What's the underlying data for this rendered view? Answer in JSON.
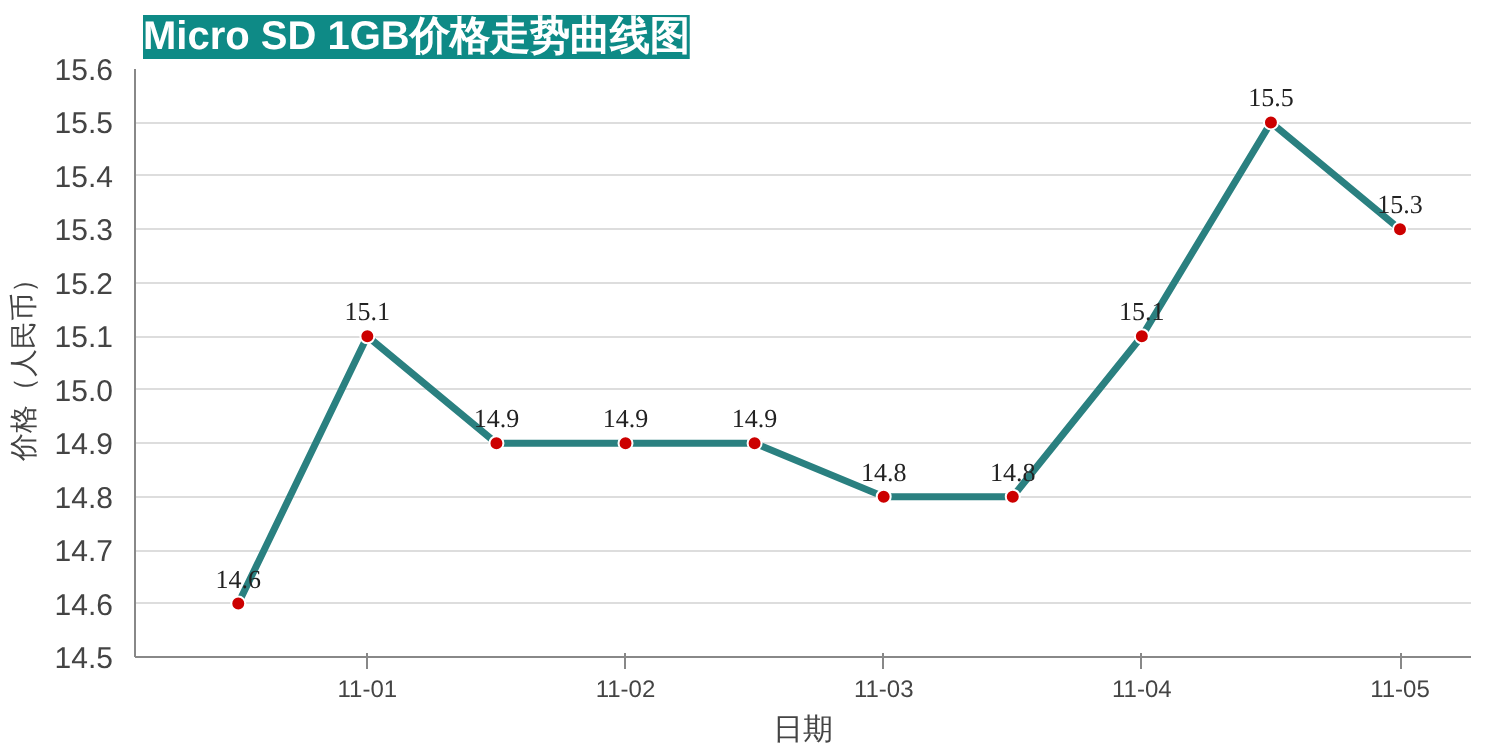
{
  "chart_data": {
    "type": "line",
    "title": "Micro SD 1GB价格走势曲线图",
    "xlabel": "日期",
    "ylabel": "价格（人民币）",
    "categories": [
      null,
      "11-01",
      null,
      "11-02",
      null,
      "11-03",
      null,
      "11-04",
      null,
      "11-05"
    ],
    "series": [
      {
        "color": "#2a8080",
        "values": [
          14.6,
          15.1,
          14.9,
          14.9,
          14.9,
          14.8,
          14.8,
          15.1,
          15.5,
          15.3
        ]
      }
    ],
    "colors": [
      "#cc0000",
      "#cc0000",
      "#cc0000",
      "#cc0000",
      "#cc0000",
      "#cc0000",
      "#cc0000",
      "#cc0000",
      "#cc0000",
      "#cc0000"
    ],
    "ylim": [
      14.5,
      15.6
    ],
    "yticks": [
      "14.5",
      "14.6",
      "14.7",
      "14.8",
      "14.9",
      "15.0",
      "15.1",
      "15.2",
      "15.3",
      "15.4",
      "15.5",
      "15.6"
    ],
    "grid": "y",
    "marker": "circle",
    "line_style": "solid",
    "data_labels": true
  }
}
